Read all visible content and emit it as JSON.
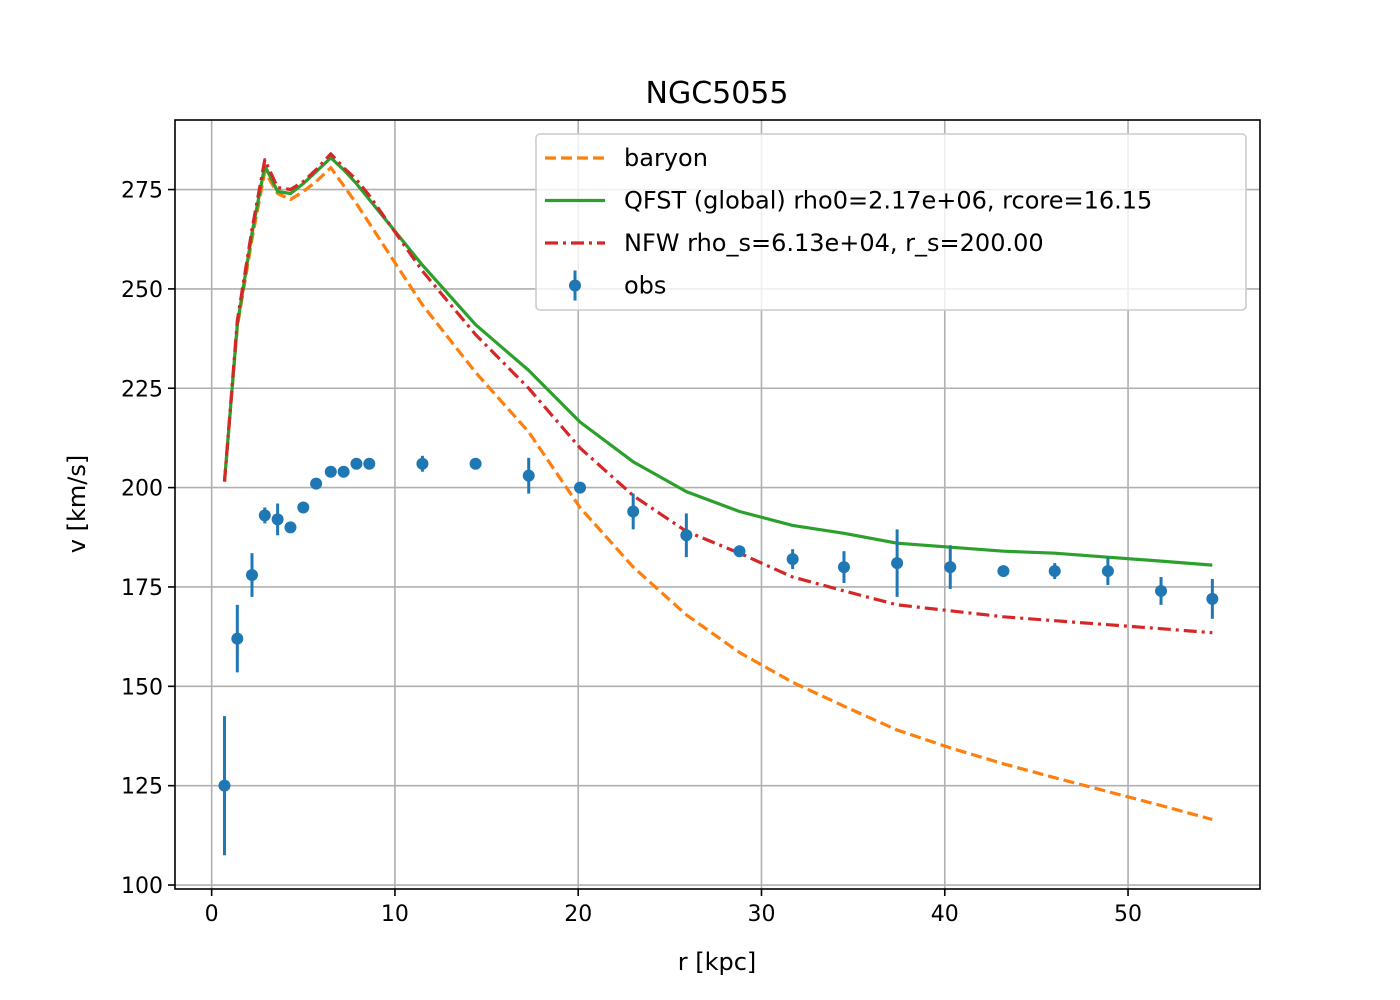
{
  "chart_data": {
    "type": "line",
    "title": "NGC5055",
    "xlabel": "r [kpc]",
    "ylabel": "v [km/s]",
    "xlim": [
      -2,
      57.2
    ],
    "ylim": [
      99,
      292.5
    ],
    "xticks": [
      0,
      10,
      20,
      30,
      40,
      50
    ],
    "yticks": [
      100,
      125,
      150,
      175,
      200,
      225,
      250,
      275
    ],
    "grid": true,
    "legend_position": "top-right",
    "series": [
      {
        "name": "baryon",
        "kind": "line",
        "style": "dashed",
        "color": "#ff7f0e",
        "x": [
          0.7,
          1.4,
          2.2,
          2.9,
          3.6,
          4.3,
          5.0,
          5.7,
          6.5,
          7.2,
          7.9,
          8.6,
          11.5,
          14.4,
          17.3,
          20.1,
          23.0,
          25.9,
          28.8,
          31.7,
          34.5,
          37.4,
          40.3,
          43.2,
          46.0,
          48.9,
          51.8,
          54.6
        ],
        "y": [
          201.5,
          240.5,
          262.5,
          279.5,
          274.0,
          272.5,
          274.5,
          277.0,
          280.5,
          276.0,
          271.5,
          266.5,
          246.0,
          229.0,
          214.0,
          195.0,
          180.0,
          168.0,
          158.5,
          151.0,
          145.0,
          139.0,
          134.5,
          130.5,
          127.0,
          123.5,
          120.0,
          116.5
        ]
      },
      {
        "name": "QFST (global) rho0=2.17e+06, rcore=16.15",
        "kind": "line",
        "style": "solid",
        "color": "#2ca02c",
        "x": [
          0.7,
          1.4,
          2.2,
          2.9,
          3.6,
          4.3,
          5.0,
          5.7,
          6.5,
          7.2,
          7.9,
          8.6,
          11.5,
          14.4,
          17.3,
          20.1,
          23.0,
          25.9,
          28.8,
          31.7,
          34.5,
          37.4,
          40.3,
          43.2,
          46.0,
          48.9,
          51.8,
          54.6
        ],
        "y": [
          201.5,
          241.0,
          264.0,
          281.0,
          274.5,
          274.0,
          276.5,
          279.5,
          283.0,
          280.0,
          276.5,
          272.5,
          256.0,
          241.0,
          229.5,
          216.5,
          206.5,
          199.0,
          194.0,
          190.5,
          188.5,
          186.0,
          185.0,
          184.0,
          183.5,
          182.5,
          181.5,
          180.5
        ]
      },
      {
        "name": "NFW rho_s=6.13e+04, r_s=200.00",
        "kind": "line",
        "style": "dashdot",
        "color": "#d62728",
        "x": [
          0.7,
          1.4,
          2.2,
          2.9,
          3.6,
          4.3,
          5.0,
          5.7,
          6.5,
          7.2,
          7.9,
          8.6,
          11.5,
          14.4,
          17.3,
          20.1,
          23.0,
          25.9,
          28.8,
          31.7,
          34.5,
          37.4,
          40.3,
          43.2,
          46.0,
          48.9,
          51.8,
          54.6
        ],
        "y": [
          201.5,
          242.0,
          265.0,
          282.5,
          275.5,
          275.0,
          277.0,
          280.0,
          284.0,
          280.5,
          277.5,
          273.5,
          254.5,
          238.5,
          225.0,
          210.0,
          198.0,
          189.0,
          183.5,
          177.5,
          174.0,
          170.5,
          169.0,
          167.5,
          166.5,
          165.5,
          164.5,
          163.5
        ]
      },
      {
        "name": "obs",
        "kind": "errorbar",
        "color": "#1f77b4",
        "x": [
          0.7,
          1.4,
          2.2,
          2.9,
          3.6,
          4.3,
          5.0,
          5.7,
          6.5,
          7.2,
          7.9,
          8.6,
          11.5,
          14.4,
          17.3,
          20.1,
          23.0,
          25.9,
          28.8,
          31.7,
          34.5,
          37.4,
          40.3,
          43.2,
          46.0,
          48.9,
          51.8,
          54.6
        ],
        "y": [
          125,
          162,
          178,
          193,
          192,
          190,
          195,
          201,
          204,
          204,
          206,
          206,
          206,
          206,
          203,
          200,
          194,
          188,
          184,
          182,
          180,
          181,
          180,
          179,
          179,
          179,
          174,
          172
        ],
        "yerr": [
          17.5,
          8.5,
          5.5,
          2.0,
          4.0,
          1.0,
          1.0,
          1.0,
          1.0,
          1.0,
          1.0,
          1.0,
          2.0,
          1.0,
          4.5,
          1.0,
          4.5,
          5.5,
          1.0,
          2.5,
          4.0,
          8.5,
          5.5,
          1.0,
          2.0,
          3.5,
          3.5,
          5.0
        ]
      }
    ]
  }
}
